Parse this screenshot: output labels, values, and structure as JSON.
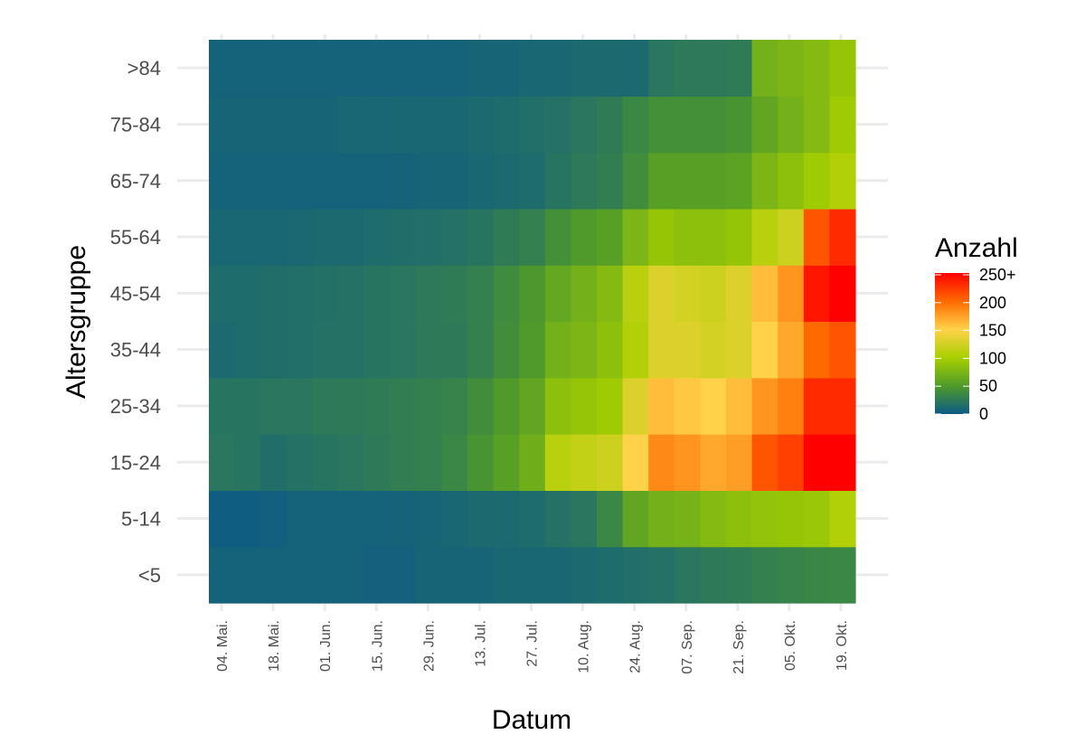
{
  "chart_data": {
    "type": "heatmap",
    "title": "",
    "xlabel": "Datum",
    "ylabel": "Altersgruppe",
    "x_tick_labels": [
      "04. Mai.",
      "18. Mai.",
      "01. Jun.",
      "15. Jun.",
      "29. Jun.",
      "13. Jul.",
      "27. Jul.",
      "10. Aug.",
      "24. Aug.",
      "07. Sep.",
      "21. Sep.",
      "05. Okt.",
      "19. Okt."
    ],
    "x_range": [
      "2020-04-30",
      "2020-10-22"
    ],
    "y_categories": [
      "<5",
      "5-14",
      "15-24",
      "25-34",
      "35-44",
      "45-54",
      "55-64",
      "65-74",
      "75-84",
      ">84"
    ],
    "color_scale": {
      "min": 0,
      "max": 250,
      "colors": [
        "#0d5a86",
        "#4f9a2a",
        "#a8d000",
        "#ffd24a",
        "#ff6a00",
        "#ff0000"
      ],
      "na_color": "#7f7f7f"
    },
    "legend": {
      "title": "Anzahl",
      "labels": [
        "250+",
        "200",
        "150",
        "100",
        "50",
        "0"
      ],
      "position": "right"
    },
    "series": [
      {
        "name": "<5",
        "values": [
          6,
          6,
          6,
          6,
          6,
          6,
          5,
          5,
          8,
          8,
          8,
          10,
          10,
          10,
          12,
          14,
          16,
          18,
          22,
          24,
          26,
          30,
          32,
          34,
          35
        ]
      },
      {
        "name": "5-14",
        "values": [
          2,
          2,
          4,
          6,
          6,
          6,
          6,
          7,
          8,
          10,
          12,
          12,
          14,
          18,
          22,
          35,
          60,
          70,
          72,
          80,
          85,
          88,
          90,
          92,
          105
        ]
      },
      {
        "name": "15-24",
        "values": [
          22,
          20,
          15,
          18,
          20,
          22,
          25,
          28,
          30,
          35,
          45,
          55,
          68,
          110,
          115,
          120,
          150,
          185,
          180,
          170,
          175,
          210,
          220,
          260,
          260
        ]
      },
      {
        "name": "25-34",
        "values": [
          20,
          20,
          22,
          22,
          24,
          25,
          26,
          28,
          30,
          32,
          40,
          50,
          60,
          85,
          90,
          95,
          130,
          160,
          155,
          150,
          160,
          180,
          190,
          230,
          230
        ]
      },
      {
        "name": "35-44",
        "values": [
          12,
          14,
          15,
          16,
          18,
          18,
          20,
          22,
          24,
          25,
          30,
          40,
          50,
          70,
          75,
          85,
          105,
          130,
          130,
          125,
          130,
          150,
          170,
          200,
          210
        ]
      },
      {
        "name": "45-54",
        "values": [
          14,
          14,
          15,
          16,
          17,
          18,
          20,
          22,
          24,
          26,
          30,
          38,
          48,
          62,
          70,
          80,
          110,
          130,
          125,
          120,
          130,
          160,
          180,
          240,
          250
        ]
      },
      {
        "name": "55-64",
        "values": [
          10,
          10,
          10,
          11,
          12,
          12,
          14,
          15,
          16,
          18,
          20,
          26,
          30,
          42,
          50,
          55,
          75,
          90,
          85,
          85,
          90,
          110,
          120,
          210,
          230
        ]
      },
      {
        "name": "65-74",
        "values": [
          6,
          6,
          6,
          6,
          6,
          6,
          6,
          7,
          8,
          8,
          10,
          12,
          14,
          20,
          24,
          28,
          40,
          55,
          55,
          55,
          58,
          75,
          85,
          95,
          105
        ]
      },
      {
        "name": "75-84",
        "values": [
          8,
          8,
          8,
          8,
          8,
          9,
          9,
          10,
          10,
          10,
          12,
          14,
          16,
          18,
          22,
          26,
          35,
          42,
          42,
          42,
          45,
          60,
          70,
          80,
          95
        ]
      },
      {
        "name": ">84",
        "values": [
          6,
          6,
          6,
          6,
          6,
          6,
          6,
          6,
          6,
          6,
          8,
          8,
          10,
          10,
          12,
          12,
          12,
          22,
          24,
          24,
          26,
          70,
          75,
          80,
          90
        ]
      }
    ]
  }
}
